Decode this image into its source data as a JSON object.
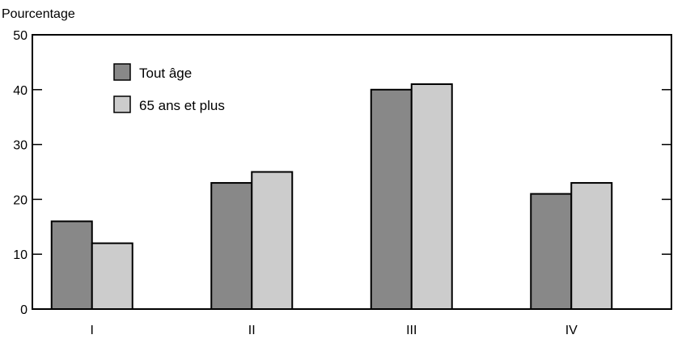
{
  "chart_data": {
    "type": "bar",
    "ylabel": "Pourcentage",
    "xlabel": "",
    "categories": [
      "I",
      "II",
      "III",
      "IV"
    ],
    "series": [
      {
        "name": "Tout âge",
        "values": [
          16,
          23,
          40,
          21
        ],
        "color": "#888888"
      },
      {
        "name": "65 ans et plus",
        "values": [
          12,
          25,
          41,
          23
        ],
        "color": "#cccccc"
      }
    ],
    "ylim": [
      0,
      50
    ],
    "yticks": [
      0,
      10,
      20,
      30,
      40,
      50
    ],
    "grid": false,
    "legend_position": "top-left"
  }
}
